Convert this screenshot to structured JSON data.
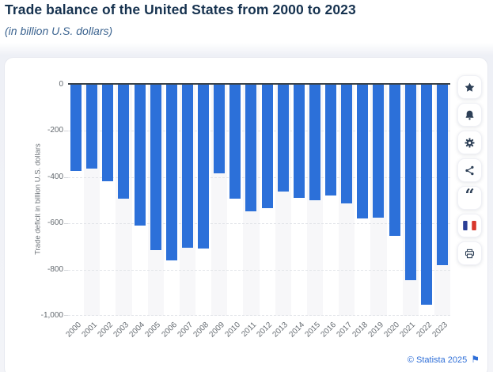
{
  "header": {
    "title": "Trade balance of the United States from 2000 to 2023",
    "subtitle": "(in billion U.S. dollars)"
  },
  "chart_data": {
    "type": "bar",
    "title": "Trade balance of the United States from 2000 to 2023",
    "subtitle": "(in billion U.S. dollars)",
    "categories": [
      "2000",
      "2001",
      "2002",
      "2003",
      "2004",
      "2005",
      "2006",
      "2007",
      "2008",
      "2009",
      "2010",
      "2011",
      "2012",
      "2013",
      "2014",
      "2015",
      "2016",
      "2017",
      "2018",
      "2019",
      "2020",
      "2021",
      "2022",
      "2023"
    ],
    "values": [
      -372.52,
      -361.51,
      -418.55,
      -493.89,
      -609.88,
      -714.24,
      -761.72,
      -705.38,
      -708.73,
      -383.67,
      -494.66,
      -548.63,
      -534.66,
      -461.88,
      -490.28,
      -500.36,
      -479.98,
      -513.78,
      -579.94,
      -576.86,
      -653.99,
      -845.05,
      -951.19,
      -779.78
    ],
    "unit": "billion U.S. dollars",
    "xlabel": "",
    "ylabel": "Trade deficit in billion U.S. dollars",
    "ylim": [
      -1000,
      0
    ],
    "yticks": [
      0,
      -200,
      -400,
      -600,
      -800,
      -1000
    ],
    "ytick_labels": [
      "0",
      "-200",
      "-400",
      "-600",
      "-800",
      "-1,000"
    ],
    "grid": true,
    "legend": false,
    "bar_color": "#2c70d9",
    "band_color": "#f7f7f9",
    "zero_line_color": "#3a434b"
  },
  "toolbar": {
    "buttons": [
      {
        "name": "favorite",
        "icon": "star-icon"
      },
      {
        "name": "alerts",
        "icon": "bell-icon"
      },
      {
        "name": "settings",
        "icon": "gear-icon"
      },
      {
        "name": "share",
        "icon": "share-icon"
      },
      {
        "name": "cite",
        "icon": "quote-icon"
      },
      {
        "name": "language-french",
        "icon": "french-flag-icon"
      },
      {
        "name": "print",
        "icon": "printer-icon"
      }
    ],
    "quote_glyph": "“",
    "icon_color": "#2e4057"
  },
  "footer": {
    "copyright": "© Statista 2025",
    "flag_glyph": "⚑"
  }
}
